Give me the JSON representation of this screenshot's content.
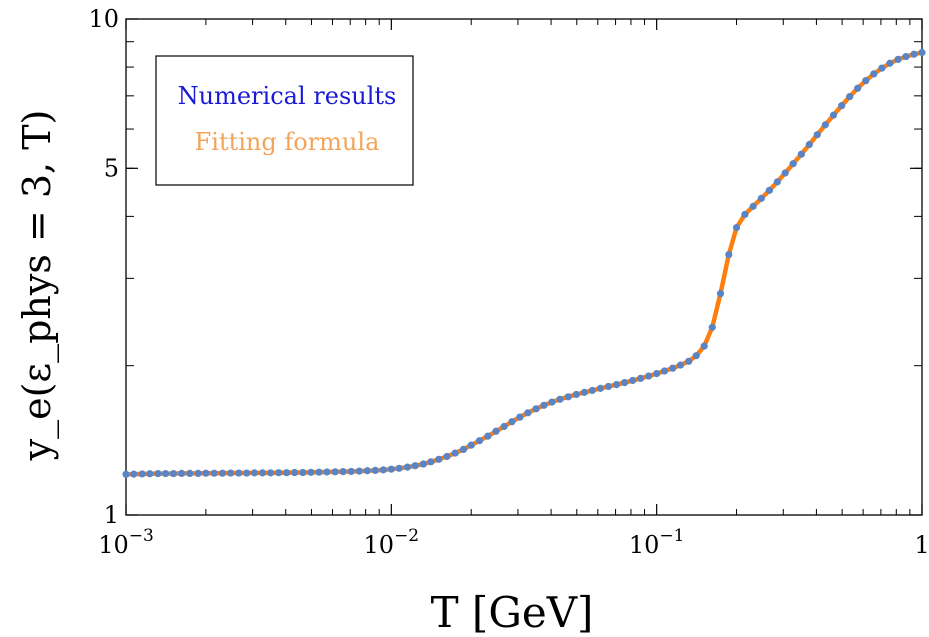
{
  "chart_data": {
    "type": "scatter",
    "x_scale": "log",
    "y_scale": "log",
    "xlim": [
      0.001,
      1
    ],
    "ylim": [
      1,
      10
    ],
    "xlabel": "T [GeV]",
    "ylabel": "y_e(ε_phys = 3, T)",
    "x_ticks": [
      {
        "value": 0.001,
        "base": "10",
        "exp": "−3"
      },
      {
        "value": 0.01,
        "base": "10",
        "exp": "−2"
      },
      {
        "value": 0.1,
        "base": "10",
        "exp": "−1"
      },
      {
        "value": 1,
        "base": "1",
        "exp": ""
      }
    ],
    "y_ticks": [
      {
        "value": 1,
        "label": "1"
      },
      {
        "value": 5,
        "label": "5"
      },
      {
        "value": 10,
        "label": "10"
      }
    ],
    "legend": {
      "position": "top-left",
      "entries": [
        {
          "label": "Numerical results",
          "color": "#1a1ad6"
        },
        {
          "label": "Fitting formula",
          "color": "#f4a45a"
        }
      ]
    },
    "series": [
      {
        "name": "Numerical results",
        "kind": "points",
        "color": "#5b84c4",
        "x": [
          0.001,
          0.00107,
          0.00115,
          0.00123,
          0.00132,
          0.00141,
          0.00151,
          0.00162,
          0.00174,
          0.00187,
          0.002,
          0.00215,
          0.00231,
          0.00248,
          0.00266,
          0.00285,
          0.00305,
          0.00327,
          0.00351,
          0.00376,
          0.00403,
          0.00432,
          0.00464,
          0.00498,
          0.00534,
          0.00572,
          0.00614,
          0.00658,
          0.00706,
          0.00757,
          0.00812,
          0.0087,
          0.00933,
          0.01,
          0.0107,
          0.0115,
          0.0123,
          0.0132,
          0.0141,
          0.0151,
          0.0162,
          0.0174,
          0.0187,
          0.02,
          0.0215,
          0.0231,
          0.0248,
          0.0266,
          0.0285,
          0.0305,
          0.0327,
          0.0351,
          0.0376,
          0.0403,
          0.0432,
          0.0464,
          0.0498,
          0.0534,
          0.0572,
          0.0614,
          0.0658,
          0.0706,
          0.0757,
          0.0812,
          0.087,
          0.0933,
          0.1,
          0.107,
          0.115,
          0.123,
          0.132,
          0.141,
          0.151,
          0.162,
          0.174,
          0.187,
          0.2,
          0.215,
          0.231,
          0.248,
          0.266,
          0.285,
          0.305,
          0.327,
          0.351,
          0.376,
          0.403,
          0.432,
          0.464,
          0.498,
          0.534,
          0.572,
          0.614,
          0.658,
          0.706,
          0.757,
          0.812,
          0.87,
          0.933,
          1.0
        ],
        "y": [
          1.208,
          1.209,
          1.21,
          1.211,
          1.212,
          1.212,
          1.212,
          1.213,
          1.213,
          1.213,
          1.214,
          1.214,
          1.214,
          1.215,
          1.215,
          1.215,
          1.216,
          1.216,
          1.216,
          1.217,
          1.217,
          1.218,
          1.218,
          1.219,
          1.22,
          1.221,
          1.222,
          1.223,
          1.224,
          1.226,
          1.228,
          1.23,
          1.233,
          1.237,
          1.242,
          1.249,
          1.257,
          1.267,
          1.28,
          1.295,
          1.312,
          1.333,
          1.356,
          1.383,
          1.412,
          1.442,
          1.475,
          1.508,
          1.542,
          1.575,
          1.607,
          1.637,
          1.664,
          1.689,
          1.711,
          1.731,
          1.75,
          1.767,
          1.783,
          1.8,
          1.816,
          1.832,
          1.849,
          1.867,
          1.886,
          1.906,
          1.928,
          1.951,
          1.977,
          2.006,
          2.041,
          2.095,
          2.19,
          2.39,
          2.795,
          3.35,
          3.798,
          4.036,
          4.19,
          4.349,
          4.514,
          4.695,
          4.893,
          5.108,
          5.339,
          5.584,
          5.844,
          6.117,
          6.4,
          6.688,
          6.974,
          7.25,
          7.511,
          7.75,
          7.961,
          8.143,
          8.29,
          8.4,
          8.49,
          8.56
        ]
      },
      {
        "name": "Fitting formula",
        "kind": "line",
        "color": "#ff7f0e"
      }
    ]
  }
}
